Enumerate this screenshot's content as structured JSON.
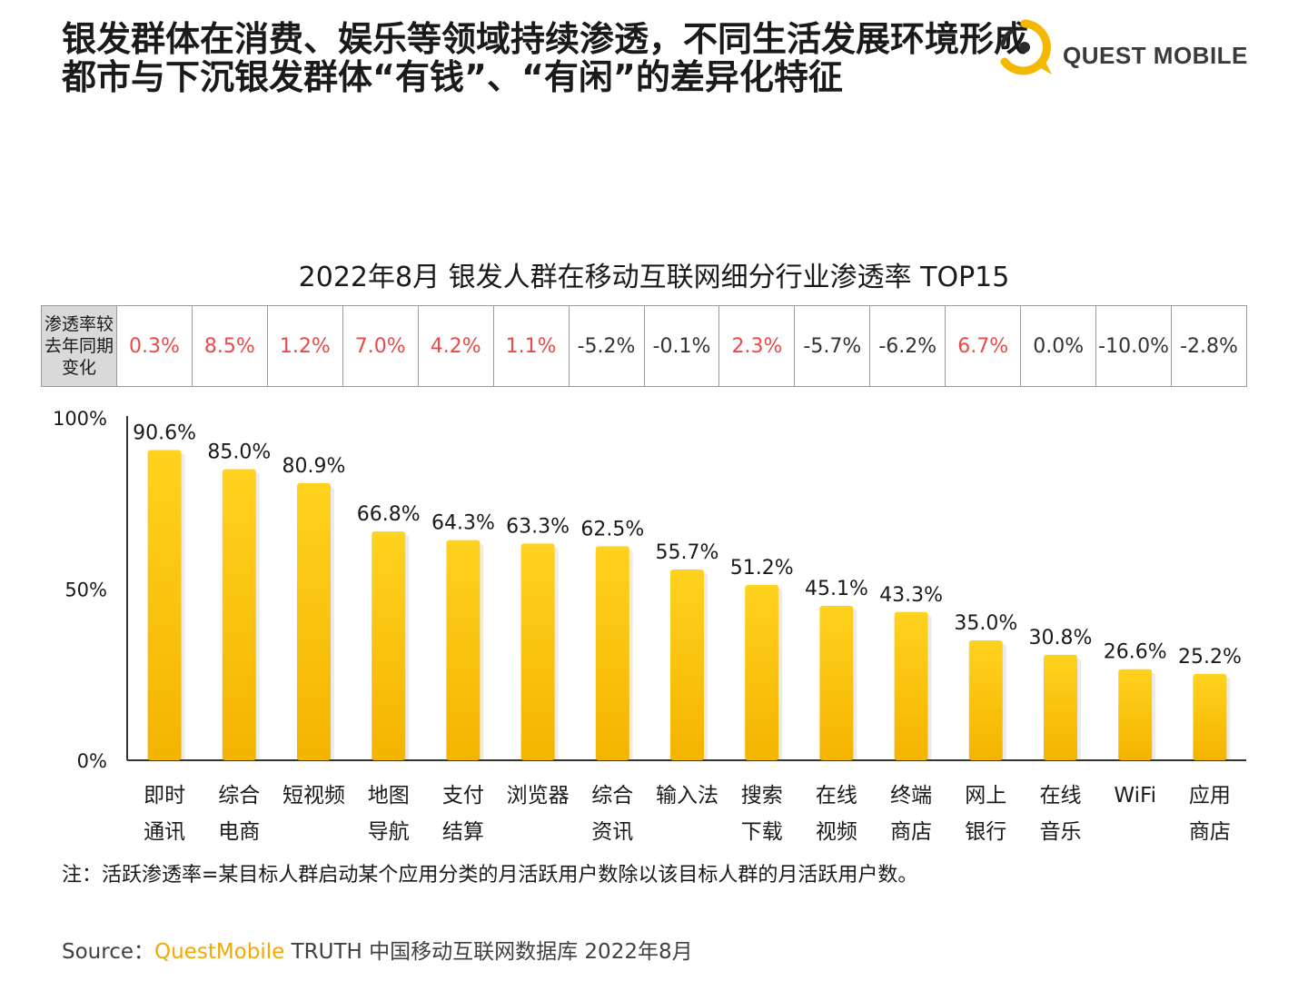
{
  "headline": {
    "line1": "银发群体在消费、娱乐等领域持续渗透，不同生活发展环境形成",
    "line2": "都市与下沉银发群体“有钱”、“有闲”的差异化特征"
  },
  "logo": {
    "text": "QUEST MOBILE",
    "icon": "questmobile-logo-icon",
    "accent": "#f5b800"
  },
  "change_row": {
    "label_lines": [
      "渗透率较",
      "去年同期",
      "变化"
    ],
    "values": [
      "0.3%",
      "8.5%",
      "1.2%",
      "7.0%",
      "4.2%",
      "1.1%",
      "-5.2%",
      "-0.1%",
      "2.3%",
      "-5.7%",
      "-6.2%",
      "6.7%",
      "0.0%",
      "-10.0%",
      "-2.8%"
    ],
    "positive_color": "#e84a4a",
    "neutral_color": "#333333"
  },
  "chart_data": {
    "type": "bar",
    "title": "2022年8月 银发人群在移动互联网细分行业渗透率 TOP15",
    "categories": [
      [
        "即时",
        "通讯"
      ],
      [
        "综合",
        "电商"
      ],
      [
        "短视频"
      ],
      [
        "地图",
        "导航"
      ],
      [
        "支付",
        "结算"
      ],
      [
        "浏览器"
      ],
      [
        "综合",
        "资讯"
      ],
      [
        "输入法"
      ],
      [
        "搜索",
        "下载"
      ],
      [
        "在线",
        "视频"
      ],
      [
        "终端",
        "商店"
      ],
      [
        "网上",
        "银行"
      ],
      [
        "在线",
        "音乐"
      ],
      [
        "WiFi"
      ],
      [
        "应用",
        "商店"
      ]
    ],
    "values": [
      90.6,
      85.0,
      80.9,
      66.8,
      64.3,
      63.3,
      62.5,
      55.7,
      51.2,
      45.1,
      43.3,
      35.0,
      30.8,
      26.6,
      25.2
    ],
    "value_labels": [
      "90.6%",
      "85.0%",
      "80.9%",
      "66.8%",
      "64.3%",
      "63.3%",
      "62.5%",
      "55.7%",
      "51.2%",
      "45.1%",
      "43.3%",
      "35.0%",
      "30.8%",
      "26.6%",
      "25.2%"
    ],
    "yticks": [
      "0%",
      "50%",
      "100%"
    ],
    "ylim": [
      0,
      100
    ],
    "bar_color_top": "#ffd21f",
    "bar_color_bottom": "#f4b400",
    "grid": false
  },
  "note": "注：活跃渗透率=某目标人群启动某个应用分类的月活跃用户数除以该目标人群的月活跃用户数。",
  "source": {
    "prefix": "Source：",
    "brand": "QuestMobile",
    "rest": " TRUTH 中国移动互联网数据库 2022年8月"
  }
}
